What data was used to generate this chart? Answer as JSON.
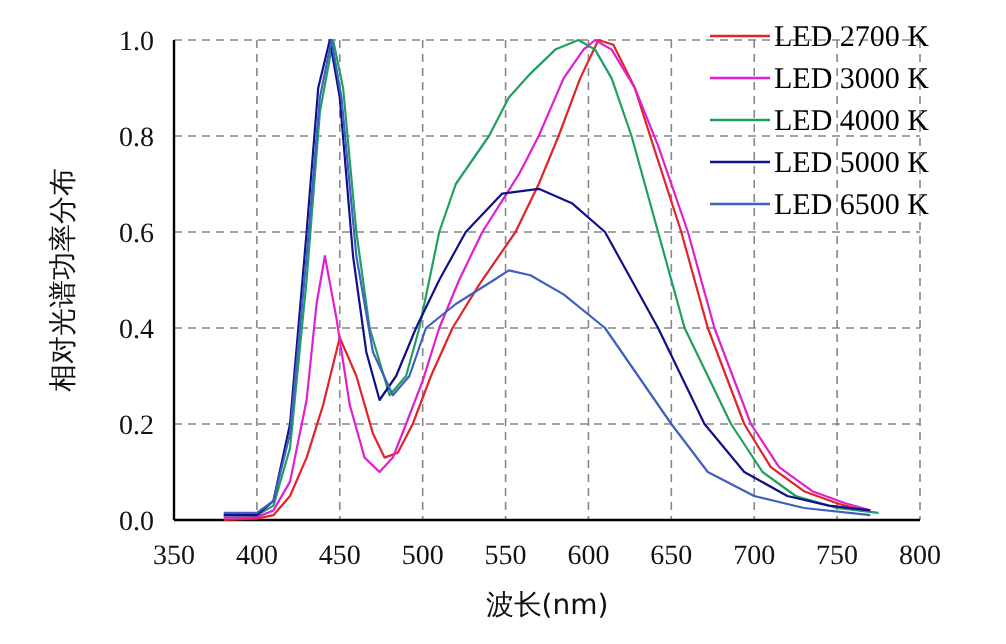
{
  "chart_data": {
    "type": "line",
    "xlabel": "波长(nm)",
    "ylabel": "相对光谱功率分布",
    "xlim": [
      350,
      800
    ],
    "xticks": [
      350,
      400,
      450,
      500,
      550,
      600,
      650,
      700,
      750,
      800
    ],
    "ylim": [
      0,
      1
    ],
    "yticks": [
      {
        "value": 0,
        "label": "0.0"
      },
      {
        "value": 0.2,
        "label": "0.2"
      },
      {
        "value": 0.4,
        "label": "0.4"
      },
      {
        "value": 0.6,
        "label": "0.6"
      },
      {
        "value": 0.8,
        "label": "0.8"
      },
      {
        "value": 1,
        "label": "1.0"
      }
    ],
    "grid": true,
    "legend": "top right",
    "line_style": "solid",
    "series": [
      {
        "name": "LED 2700 K",
        "color": "#e0242a",
        "x": [
          380,
          400,
          410,
          420,
          430,
          440,
          450,
          460,
          470,
          477,
          485,
          494,
          505,
          518,
          534,
          556,
          570,
          582,
          595,
          606,
          615,
          628,
          640,
          656,
          672,
          694,
          710,
          730,
          750,
          765
        ],
        "values": [
          0,
          0.003,
          0.01,
          0.05,
          0.13,
          0.24,
          0.38,
          0.3,
          0.18,
          0.13,
          0.14,
          0.2,
          0.3,
          0.4,
          0.49,
          0.6,
          0.7,
          0.8,
          0.92,
          1.0,
          0.99,
          0.9,
          0.77,
          0.6,
          0.4,
          0.2,
          0.11,
          0.06,
          0.035,
          0.02
        ]
      },
      {
        "name": "LED 3000 K",
        "color": "#e020d0",
        "x": [
          380,
          400,
          410,
          420,
          430,
          436,
          441,
          448,
          456,
          465,
          474,
          482,
          490,
          500,
          510,
          522,
          536,
          558,
          570,
          585,
          597,
          604,
          614,
          628,
          642,
          660,
          676,
          698,
          715,
          735,
          755,
          770
        ],
        "values": [
          0.005,
          0.006,
          0.02,
          0.08,
          0.25,
          0.45,
          0.55,
          0.42,
          0.24,
          0.13,
          0.1,
          0.13,
          0.2,
          0.29,
          0.4,
          0.5,
          0.6,
          0.72,
          0.8,
          0.92,
          0.98,
          1.0,
          0.98,
          0.9,
          0.78,
          0.6,
          0.4,
          0.2,
          0.11,
          0.06,
          0.035,
          0.02
        ]
      },
      {
        "name": "LED 4000 K",
        "color": "#20a060",
        "x": [
          380,
          400,
          410,
          420,
          430,
          438,
          446,
          452,
          460,
          468,
          480,
          490,
          498,
          510,
          520,
          540,
          552,
          565,
          580,
          594,
          604,
          614,
          626,
          642,
          658,
          686,
          705,
          725,
          750,
          775
        ],
        "values": [
          0.01,
          0.01,
          0.03,
          0.15,
          0.5,
          0.85,
          1.0,
          0.9,
          0.6,
          0.4,
          0.26,
          0.3,
          0.4,
          0.6,
          0.7,
          0.8,
          0.88,
          0.93,
          0.98,
          1.0,
          0.98,
          0.92,
          0.8,
          0.6,
          0.4,
          0.2,
          0.1,
          0.05,
          0.025,
          0.015
        ]
      },
      {
        "name": "LED 5000 K",
        "color": "#10108a",
        "x": [
          380,
          400,
          410,
          420,
          430,
          437,
          444,
          450,
          458,
          466,
          474,
          484,
          496,
          510,
          526,
          548,
          570,
          590,
          610,
          626,
          642,
          656,
          670,
          694,
          720,
          745,
          770
        ],
        "values": [
          0.01,
          0.01,
          0.04,
          0.2,
          0.6,
          0.9,
          1.0,
          0.88,
          0.55,
          0.35,
          0.25,
          0.3,
          0.4,
          0.5,
          0.6,
          0.68,
          0.69,
          0.66,
          0.6,
          0.5,
          0.4,
          0.3,
          0.2,
          0.1,
          0.05,
          0.03,
          0.02
        ]
      },
      {
        "name": "LED 6500 K",
        "color": "#4060c0",
        "x": [
          380,
          400,
          410,
          420,
          430,
          438,
          445,
          451,
          460,
          470,
          482,
          492,
          502,
          520,
          543,
          552,
          565,
          585,
          610,
          630,
          650,
          672,
          700,
          730,
          770
        ],
        "values": [
          0.015,
          0.015,
          0.04,
          0.18,
          0.55,
          0.88,
          1.0,
          0.88,
          0.55,
          0.35,
          0.26,
          0.3,
          0.4,
          0.45,
          0.5,
          0.52,
          0.51,
          0.47,
          0.4,
          0.3,
          0.2,
          0.1,
          0.05,
          0.025,
          0.01
        ]
      }
    ]
  }
}
